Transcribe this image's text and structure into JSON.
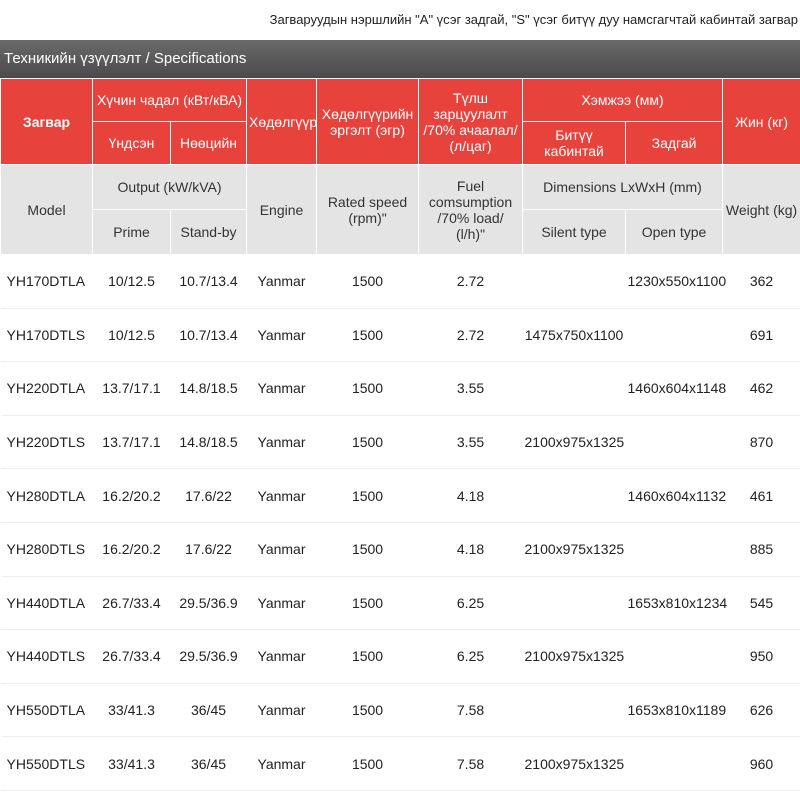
{
  "note": "Загваруудын нэршлийн \"A\" үсэг задгай, \"S\" үсэг битүү дуу намсгагчтай кабинтай загвар",
  "section_title": "Техникийн үзүүлэлт / Specifications",
  "header_local": {
    "model": "Загвар",
    "power": "Хүчин чадал (кВт/кВА)",
    "prime": "Үндсэн",
    "standby": "Нөөцийн",
    "engine": "Хөдөлгүүр",
    "speed": "Хөдөлгүүрийн эргэлт (эгр)",
    "fuel": "Түлш зарцуулалт /70% ачаалал/ (л/цаг)",
    "dimensions": "Хэмжээ (мм)",
    "silent": "Битүү кабинтай",
    "open": "Задгай",
    "weight": "Жин (кг)"
  },
  "header_en": {
    "model": "Model",
    "power": "Output (kW/kVA)",
    "prime": "Prime",
    "standby": "Stand-by",
    "engine": "Engine",
    "speed": "Rated speed (rpm)\"",
    "fuel": "Fuel comsumption /70% load/ (l/h)\"",
    "dimensions": "Dimensions LxWxH (mm)",
    "silent": "Silent type",
    "open": "Open type",
    "weight": "Weight (kg)"
  },
  "rows": [
    [
      "YH170DTLA",
      "10/12.5",
      "10.7/13.4",
      "Yanmar",
      1500,
      2.72,
      null,
      "1230x550x1100",
      362
    ],
    [
      "YH170DTLS",
      "10/12.5",
      "10.7/13.4",
      "Yanmar",
      1500,
      2.72,
      "1475x750x1100",
      null,
      691
    ],
    [
      "YH220DTLA",
      "13.7/17.1",
      "14.8/18.5",
      "Yanmar",
      1500,
      3.55,
      null,
      "1460x604x1148",
      462
    ],
    [
      "YH220DTLS",
      "13.7/17.1",
      "14.8/18.5",
      "Yanmar",
      1500,
      3.55,
      "2100x975x1325",
      null,
      870
    ],
    [
      "YH280DTLA",
      "16.2/20.2",
      "17.6/22",
      "Yanmar",
      1500,
      4.18,
      null,
      "1460x604x1132",
      461
    ],
    [
      "YH280DTLS",
      "16.2/20.2",
      "17.6/22",
      "Yanmar",
      1500,
      4.18,
      "2100x975x1325",
      null,
      885
    ],
    [
      "YH440DTLA",
      "26.7/33.4",
      "29.5/36.9",
      "Yanmar",
      1500,
      6.25,
      null,
      "1653x810x1234",
      545
    ],
    [
      "YH440DTLS",
      "26.7/33.4",
      "29.5/36.9",
      "Yanmar",
      1500,
      6.25,
      "2100x975x1325",
      null,
      950
    ],
    [
      "YH550DTLA",
      "33/41.3",
      "36/45",
      "Yanmar",
      1500,
      7.58,
      null,
      "1653x810x1189",
      626
    ],
    [
      "YH550DTLS",
      "33/41.3",
      "36/45",
      "Yanmar",
      1500,
      7.58,
      "2100x975x1325",
      null,
      960
    ]
  ]
}
